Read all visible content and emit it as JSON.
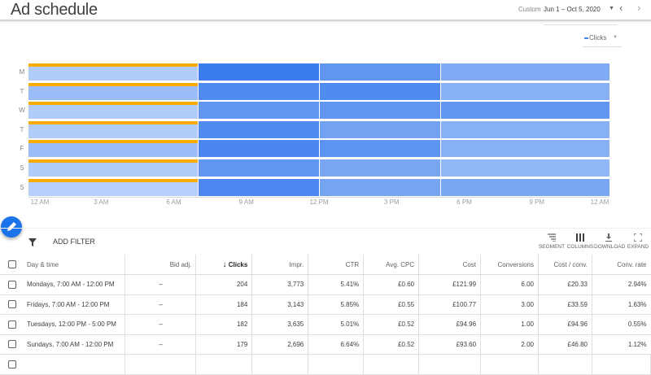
{
  "header": {
    "title": "Ad schedule",
    "range_label": "Custom",
    "date_range": "Jun 1 – Oct 5, 2020"
  },
  "metric_selector": {
    "label": "Clicks",
    "color": "#4285f4"
  },
  "chart_data": {
    "type": "heatmap",
    "metric": "Clicks",
    "rows": [
      "M",
      "T",
      "W",
      "T",
      "F",
      "S",
      "S"
    ],
    "x_ticks": [
      "12 AM",
      "3 AM",
      "6 AM",
      "9 AM",
      "12 PM",
      "3 PM",
      "6 PM",
      "9 PM",
      "12 AM"
    ],
    "x_range_hours": [
      0,
      24
    ],
    "segments_hours": [
      [
        0,
        7
      ],
      [
        7,
        12
      ],
      [
        12,
        17
      ],
      [
        17,
        24
      ]
    ],
    "intensity": [
      [
        0.15,
        1.0,
        0.72,
        0.5
      ],
      [
        0.3,
        0.85,
        0.85,
        0.45
      ],
      [
        0.15,
        0.72,
        0.72,
        0.72
      ],
      [
        0.15,
        0.85,
        0.6,
        0.45
      ],
      [
        0.3,
        0.9,
        0.75,
        0.45
      ],
      [
        0.15,
        0.72,
        0.55,
        0.38
      ],
      [
        0.12,
        0.88,
        0.58,
        0.55
      ]
    ],
    "highlight_segment_color": "#f9ab00",
    "low_color": "#c6dafc",
    "high_color": "#3b7ded"
  },
  "toolbar": {
    "add_filter": "ADD FILTER",
    "segment": "SEGMENT",
    "columns": "COLUMNS",
    "download": "DOWNLOAD",
    "expand": "EXPAND"
  },
  "table": {
    "headers": [
      "Day & time",
      "Bid adj.",
      "Clicks",
      "Impr.",
      "CTR",
      "Avg. CPC",
      "Cost",
      "Conversions",
      "Cost / conv.",
      "Conv. rate"
    ],
    "rows": [
      [
        "Mondays, 7:00 AM - 12:00 PM",
        "–",
        "204",
        "3,773",
        "5.41%",
        "£0.60",
        "£121.99",
        "6.00",
        "£20.33",
        "2.94%"
      ],
      [
        "Fridays, 7:00 AM - 12:00 PM",
        "–",
        "184",
        "3,143",
        "5.85%",
        "£0.55",
        "£100.77",
        "3.00",
        "£33.59",
        "1.63%"
      ],
      [
        "Tuesdays, 12:00 PM - 5:00 PM",
        "–",
        "182",
        "3,635",
        "5.01%",
        "£0.52",
        "£94.96",
        "1.00",
        "£94.96",
        "0.55%"
      ],
      [
        "Sundays, 7:00 AM - 12:00 PM",
        "–",
        "179",
        "2,696",
        "6.64%",
        "£0.52",
        "£93.60",
        "2.00",
        "£46.80",
        "1.12%"
      ]
    ]
  }
}
